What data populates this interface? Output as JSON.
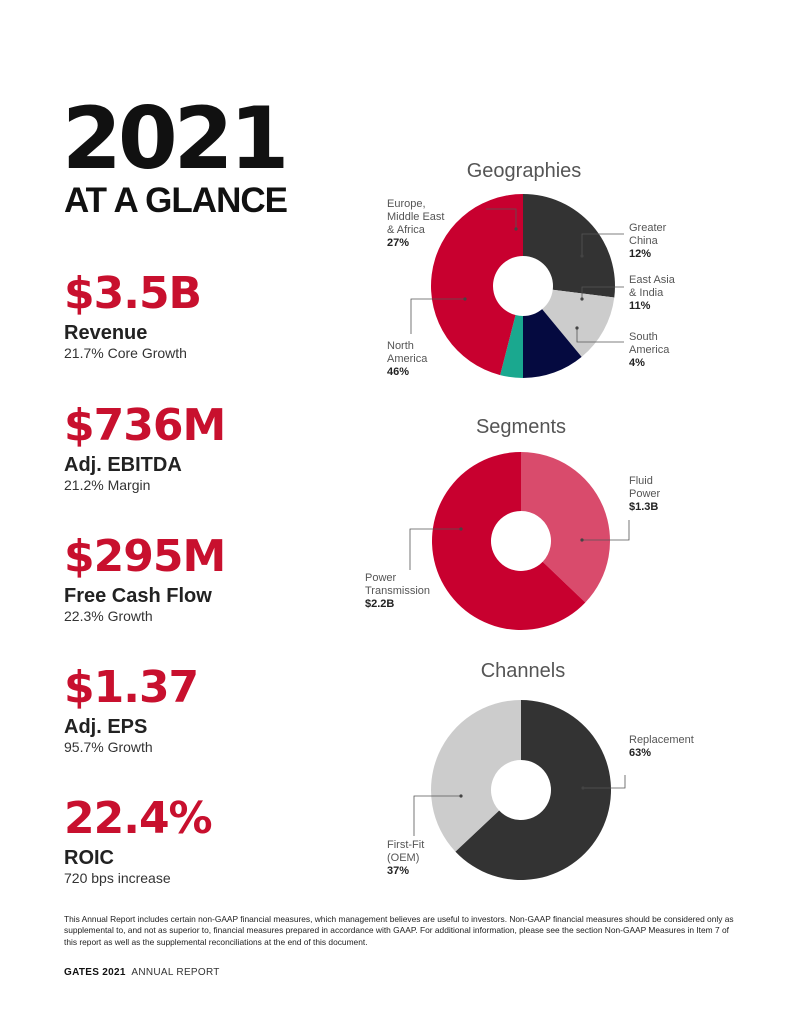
{
  "header": {
    "year": "2021",
    "subtitle": "AT A GLANCE"
  },
  "metrics": [
    {
      "value": "$3.5B",
      "label": "Revenue",
      "sub": "21.7% Core Growth"
    },
    {
      "value": "$736M",
      "label": "Adj. EBITDA",
      "sub": "21.2% Margin"
    },
    {
      "value": "$295M",
      "label": "Free Cash Flow",
      "sub": "22.3% Growth"
    },
    {
      "value": "$1.37",
      "label": "Adj. EPS",
      "sub": "95.7% Growth"
    },
    {
      "value": "22.4%",
      "label": "ROIC",
      "sub": "720 bps increase"
    }
  ],
  "chart_data": [
    {
      "type": "pie",
      "title": "Geographies",
      "categories": [
        "Europe, Middle East & Africa",
        "Greater China",
        "East Asia & India",
        "South America",
        "North America"
      ],
      "values": [
        27,
        12,
        11,
        4,
        46
      ],
      "value_labels": [
        "27%",
        "12%",
        "11%",
        "4%",
        "46%"
      ],
      "colors": [
        "#333333",
        "#cccccc",
        "#050a40",
        "#1aa88f",
        "#c8002f"
      ],
      "label_lines": [
        [
          "Europe,",
          "Middle East",
          "& Africa"
        ],
        [
          "Greater",
          "China"
        ],
        [
          "East Asia",
          "& India"
        ],
        [
          "South",
          "America"
        ],
        [
          "North",
          "America"
        ]
      ]
    },
    {
      "type": "pie",
      "title": "Segments",
      "categories": [
        "Fluid Power",
        "Power Transmission"
      ],
      "values": [
        1.3,
        2.2
      ],
      "value_labels": [
        "$1.3B",
        "$2.2B"
      ],
      "colors": [
        "#d94b6c",
        "#c8002f"
      ],
      "label_lines": [
        [
          "Fluid",
          "Power"
        ],
        [
          "Power",
          "Transmission"
        ]
      ]
    },
    {
      "type": "pie",
      "title": "Channels",
      "categories": [
        "Replacement",
        "First-Fit (OEM)"
      ],
      "values": [
        63,
        37
      ],
      "value_labels": [
        "63%",
        "37%"
      ],
      "colors": [
        "#333333",
        "#cccccc"
      ],
      "label_lines": [
        [
          "Replacement"
        ],
        [
          "First-Fit",
          "(OEM)"
        ]
      ]
    }
  ],
  "footnote": "This Annual Report includes certain non-GAAP financial measures, which management believes are useful to investors. Non-GAAP financial measures should be considered only as supplemental to, and not as superior to, financial measures prepared in accordance with GAAP. For additional information, please see the section Non-GAAP Measures in Item 7 of this report as well as the supplemental reconciliations at the end of this document.",
  "brand": {
    "name": "GATES 2021",
    "tag": "ANNUAL REPORT"
  }
}
